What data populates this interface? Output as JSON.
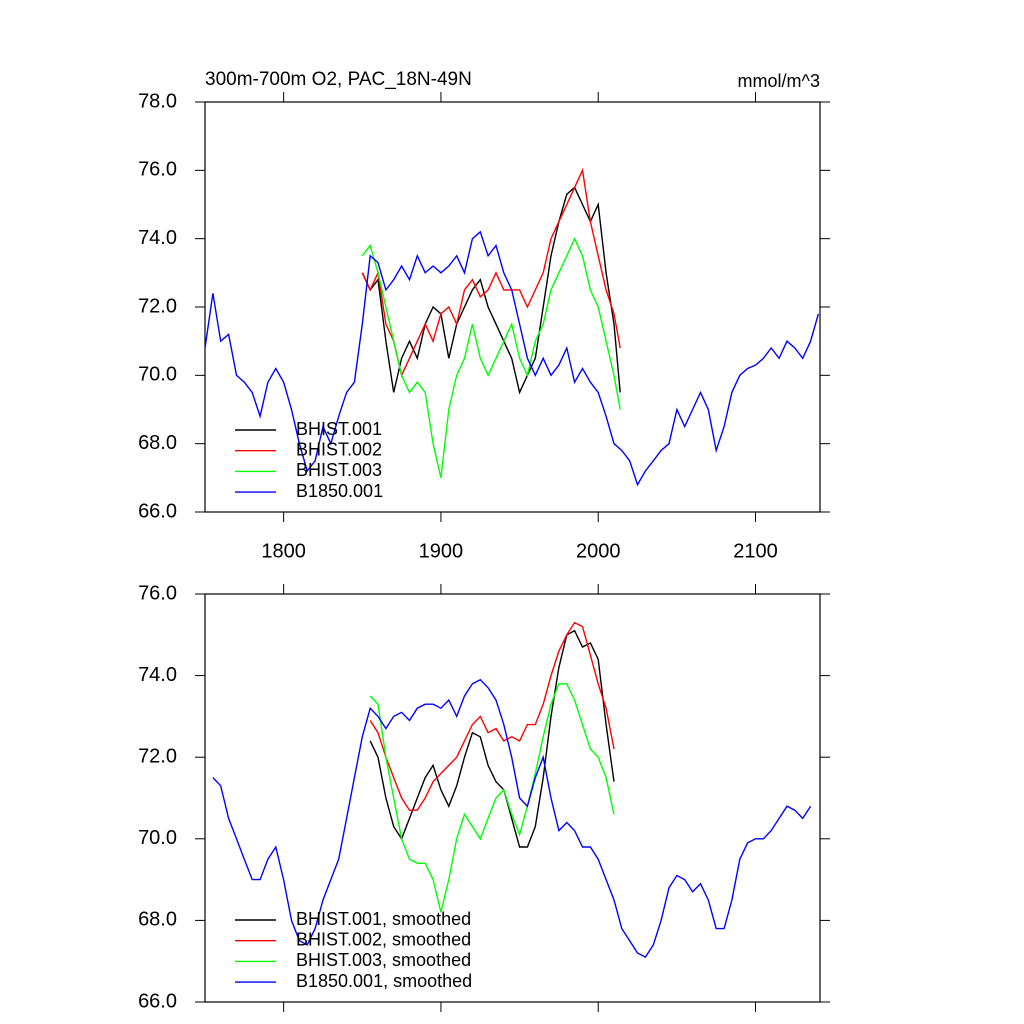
{
  "chart_data": [
    {
      "type": "line",
      "title": "300m-700m O2, PAC_18N-49N",
      "units": "mmol/m^3",
      "xlim": [
        1750,
        2141
      ],
      "xticks": [
        1800,
        1900,
        2000,
        2100
      ],
      "xtick_labels": true,
      "ylim": [
        66,
        78
      ],
      "yticks": [
        {
          "value": 66,
          "label": "66.0"
        },
        {
          "value": 68,
          "label": "68.0"
        },
        {
          "value": 70,
          "label": "70.0"
        },
        {
          "value": 72,
          "label": "72.0"
        },
        {
          "value": 74,
          "label": "74.0"
        },
        {
          "value": 76,
          "label": "76.0"
        },
        {
          "value": 78,
          "label": "78.0"
        }
      ],
      "series": [
        {
          "name": "BHIST.001",
          "color": "#000000",
          "x": [
            1850,
            1855,
            1860,
            1865,
            1870,
            1875,
            1880,
            1885,
            1890,
            1895,
            1900,
            1905,
            1910,
            1915,
            1920,
            1925,
            1930,
            1935,
            1940,
            1945,
            1950,
            1955,
            1960,
            1965,
            1970,
            1975,
            1980,
            1985,
            1990,
            1995,
            2000,
            2005,
            2010,
            2014
          ],
          "values": [
            73.0,
            72.5,
            72.8,
            71.0,
            69.5,
            70.5,
            71.0,
            70.5,
            71.5,
            72.0,
            71.8,
            70.5,
            71.5,
            72.0,
            72.5,
            72.8,
            72.0,
            71.5,
            71.0,
            70.5,
            69.5,
            70.0,
            70.5,
            72.0,
            73.5,
            74.5,
            75.3,
            75.5,
            75.0,
            74.5,
            75.0,
            73.0,
            71.5,
            69.5
          ]
        },
        {
          "name": "BHIST.002",
          "color": "#ff0000",
          "x": [
            1850,
            1855,
            1860,
            1865,
            1870,
            1875,
            1880,
            1885,
            1890,
            1895,
            1900,
            1905,
            1910,
            1915,
            1920,
            1925,
            1930,
            1935,
            1940,
            1945,
            1950,
            1955,
            1960,
            1965,
            1970,
            1975,
            1980,
            1985,
            1990,
            1995,
            2000,
            2005,
            2010,
            2014
          ],
          "values": [
            73.0,
            72.5,
            73.0,
            71.5,
            71.0,
            70.0,
            70.5,
            71.0,
            71.5,
            71.0,
            71.8,
            72.0,
            71.5,
            72.5,
            72.8,
            72.3,
            72.5,
            73.0,
            72.5,
            72.5,
            72.5,
            72.0,
            72.5,
            73.0,
            74.0,
            74.5,
            75.0,
            75.5,
            76.0,
            74.5,
            73.5,
            72.5,
            71.8,
            70.8
          ]
        },
        {
          "name": "BHIST.003",
          "color": "#00ff00",
          "x": [
            1850,
            1855,
            1860,
            1865,
            1870,
            1875,
            1880,
            1885,
            1890,
            1895,
            1900,
            1905,
            1910,
            1915,
            1920,
            1925,
            1930,
            1935,
            1940,
            1945,
            1950,
            1955,
            1960,
            1965,
            1970,
            1975,
            1980,
            1985,
            1990,
            1995,
            2000,
            2005,
            2010,
            2014
          ],
          "values": [
            73.5,
            73.8,
            73.0,
            72.0,
            71.0,
            70.0,
            69.5,
            69.8,
            69.5,
            68.0,
            67.0,
            69.0,
            70.0,
            70.5,
            71.5,
            70.5,
            70.0,
            70.5,
            71.0,
            71.5,
            70.5,
            70.0,
            71.0,
            71.5,
            72.5,
            73.0,
            73.5,
            74.0,
            73.5,
            72.5,
            72.0,
            71.0,
            70.0,
            69.0
          ]
        },
        {
          "name": "B1850.001",
          "color": "#0000ff",
          "x": [
            1750,
            1755,
            1760,
            1765,
            1770,
            1775,
            1780,
            1785,
            1790,
            1795,
            1800,
            1805,
            1810,
            1815,
            1820,
            1825,
            1830,
            1835,
            1840,
            1845,
            1850,
            1855,
            1860,
            1865,
            1870,
            1875,
            1880,
            1885,
            1890,
            1895,
            1900,
            1905,
            1910,
            1915,
            1920,
            1925,
            1930,
            1935,
            1940,
            1945,
            1950,
            1955,
            1960,
            1965,
            1970,
            1975,
            1980,
            1985,
            1990,
            1995,
            2000,
            2005,
            2010,
            2015,
            2020,
            2025,
            2030,
            2035,
            2040,
            2045,
            2050,
            2055,
            2060,
            2065,
            2070,
            2075,
            2080,
            2085,
            2090,
            2095,
            2100,
            2105,
            2110,
            2115,
            2120,
            2125,
            2130,
            2135,
            2140
          ],
          "values": [
            70.8,
            72.4,
            71.0,
            71.2,
            70.0,
            69.8,
            69.5,
            68.8,
            69.8,
            70.2,
            69.8,
            69.0,
            68.0,
            67.2,
            67.5,
            68.5,
            68.0,
            68.8,
            69.5,
            69.8,
            71.5,
            73.5,
            73.3,
            72.5,
            72.8,
            73.2,
            72.8,
            73.5,
            73.0,
            73.2,
            73.0,
            73.2,
            73.5,
            73.0,
            74.0,
            74.2,
            73.5,
            73.8,
            73.0,
            72.5,
            71.5,
            70.5,
            70.0,
            70.5,
            70.0,
            70.3,
            70.8,
            69.8,
            70.2,
            69.8,
            69.5,
            68.8,
            68.0,
            67.8,
            67.5,
            66.8,
            67.2,
            67.5,
            67.8,
            68.0,
            69.0,
            68.5,
            69.0,
            69.5,
            69.0,
            67.8,
            68.5,
            69.5,
            70.0,
            70.2,
            70.3,
            70.5,
            70.8,
            70.5,
            71.0,
            70.8,
            70.5,
            71.0,
            71.8
          ]
        }
      ]
    },
    {
      "type": "line",
      "xlim": [
        1750,
        2141
      ],
      "xticks": [
        1800,
        1900,
        2000,
        2100
      ],
      "xtick_labels": false,
      "ylim": [
        66,
        76
      ],
      "yticks": [
        {
          "value": 66,
          "label": "66.0"
        },
        {
          "value": 68,
          "label": "68.0"
        },
        {
          "value": 70,
          "label": "70.0"
        },
        {
          "value": 72,
          "label": "72.0"
        },
        {
          "value": 74,
          "label": "74.0"
        },
        {
          "value": 76,
          "label": "76.0"
        }
      ],
      "series": [
        {
          "name": "BHIST.001, smoothed",
          "color": "#000000",
          "x": [
            1855,
            1860,
            1865,
            1870,
            1875,
            1880,
            1885,
            1890,
            1895,
            1900,
            1905,
            1910,
            1915,
            1920,
            1925,
            1930,
            1935,
            1940,
            1945,
            1950,
            1955,
            1960,
            1965,
            1970,
            1975,
            1980,
            1985,
            1990,
            1995,
            2000,
            2005,
            2010
          ],
          "values": [
            72.4,
            72.0,
            71.0,
            70.3,
            70.0,
            70.5,
            71.0,
            71.5,
            71.8,
            71.2,
            70.8,
            71.3,
            72.0,
            72.6,
            72.5,
            71.8,
            71.4,
            71.2,
            70.5,
            69.8,
            69.8,
            70.3,
            71.5,
            73.0,
            74.2,
            75.0,
            75.1,
            74.7,
            74.8,
            74.4,
            72.8,
            71.4
          ]
        },
        {
          "name": "BHIST.002, smoothed",
          "color": "#ff0000",
          "x": [
            1855,
            1860,
            1865,
            1870,
            1875,
            1880,
            1885,
            1890,
            1895,
            1900,
            1905,
            1910,
            1915,
            1920,
            1925,
            1930,
            1935,
            1940,
            1945,
            1950,
            1955,
            1960,
            1965,
            1970,
            1975,
            1980,
            1985,
            1990,
            1995,
            2000,
            2005,
            2010
          ],
          "values": [
            72.9,
            72.6,
            72.0,
            71.5,
            71.0,
            70.7,
            70.7,
            71.0,
            71.4,
            71.6,
            71.8,
            72.0,
            72.4,
            72.8,
            73.0,
            72.6,
            72.7,
            72.4,
            72.5,
            72.4,
            72.8,
            72.8,
            73.3,
            74.0,
            74.6,
            75.0,
            75.3,
            75.2,
            74.5,
            73.8,
            73.2,
            72.2
          ]
        },
        {
          "name": "BHIST.003, smoothed",
          "color": "#00ff00",
          "x": [
            1855,
            1860,
            1865,
            1870,
            1875,
            1880,
            1885,
            1890,
            1895,
            1900,
            1905,
            1910,
            1915,
            1920,
            1925,
            1930,
            1935,
            1940,
            1945,
            1950,
            1955,
            1960,
            1965,
            1970,
            1975,
            1980,
            1985,
            1990,
            1995,
            2000,
            2005,
            2010
          ],
          "values": [
            73.5,
            73.3,
            72.0,
            71.0,
            70.0,
            69.5,
            69.4,
            69.4,
            69.0,
            68.2,
            69.0,
            70.0,
            70.6,
            70.3,
            70.0,
            70.5,
            71.0,
            71.2,
            70.6,
            70.1,
            70.8,
            71.6,
            72.5,
            73.3,
            73.8,
            73.8,
            73.4,
            72.8,
            72.2,
            72.0,
            71.5,
            70.6
          ]
        },
        {
          "name": "B1850.001, smoothed",
          "color": "#0000ff",
          "x": [
            1755,
            1760,
            1765,
            1770,
            1775,
            1780,
            1785,
            1790,
            1795,
            1800,
            1805,
            1810,
            1815,
            1820,
            1825,
            1830,
            1835,
            1840,
            1845,
            1850,
            1855,
            1860,
            1865,
            1870,
            1875,
            1880,
            1885,
            1890,
            1895,
            1900,
            1905,
            1910,
            1915,
            1920,
            1925,
            1930,
            1935,
            1940,
            1945,
            1950,
            1955,
            1960,
            1965,
            1970,
            1975,
            1980,
            1985,
            1990,
            1995,
            2000,
            2005,
            2010,
            2015,
            2020,
            2025,
            2030,
            2035,
            2040,
            2045,
            2050,
            2055,
            2060,
            2065,
            2070,
            2075,
            2080,
            2085,
            2090,
            2095,
            2100,
            2105,
            2110,
            2115,
            2120,
            2125,
            2130,
            2135
          ],
          "values": [
            71.5,
            71.3,
            70.5,
            70.0,
            69.5,
            69.0,
            69.0,
            69.5,
            69.8,
            69.0,
            68.0,
            67.5,
            67.4,
            67.8,
            68.5,
            69.0,
            69.5,
            70.5,
            71.5,
            72.5,
            73.2,
            73.0,
            72.7,
            73.0,
            73.1,
            72.9,
            73.2,
            73.3,
            73.3,
            73.2,
            73.4,
            73.0,
            73.5,
            73.8,
            73.9,
            73.7,
            73.4,
            72.8,
            72.0,
            71.0,
            70.8,
            71.5,
            72.0,
            71.0,
            70.2,
            70.4,
            70.2,
            69.8,
            69.8,
            69.5,
            69.0,
            68.5,
            67.8,
            67.5,
            67.2,
            67.1,
            67.4,
            68.0,
            68.8,
            69.1,
            69.0,
            68.7,
            68.9,
            68.5,
            67.8,
            67.8,
            68.5,
            69.5,
            69.9,
            70.0,
            70.0,
            70.2,
            70.5,
            70.8,
            70.7,
            70.5,
            70.8
          ]
        }
      ]
    }
  ]
}
